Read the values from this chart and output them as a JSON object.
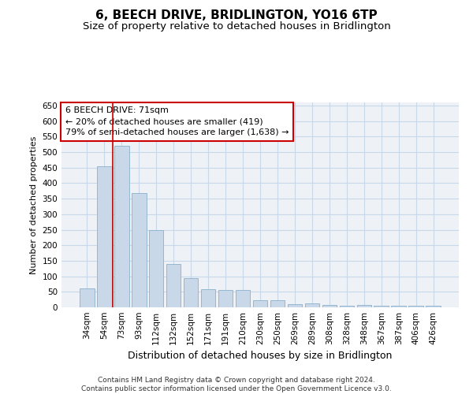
{
  "title": "6, BEECH DRIVE, BRIDLINGTON, YO16 6TP",
  "subtitle": "Size of property relative to detached houses in Bridlington",
  "xlabel": "Distribution of detached houses by size in Bridlington",
  "ylabel": "Number of detached properties",
  "categories": [
    "34sqm",
    "54sqm",
    "73sqm",
    "93sqm",
    "112sqm",
    "132sqm",
    "152sqm",
    "171sqm",
    "191sqm",
    "210sqm",
    "230sqm",
    "250sqm",
    "269sqm",
    "289sqm",
    "308sqm",
    "328sqm",
    "348sqm",
    "367sqm",
    "387sqm",
    "406sqm",
    "426sqm"
  ],
  "values": [
    62,
    455,
    520,
    368,
    248,
    140,
    93,
    59,
    57,
    55,
    24,
    23,
    10,
    12,
    7,
    6,
    7,
    5,
    5,
    4,
    4
  ],
  "bar_color": "#c8d8e8",
  "bar_edge_color": "#8ab0cc",
  "grid_color": "#c8d8e8",
  "background_color": "#eef2f7",
  "annotation_text": "6 BEECH DRIVE: 71sqm\n← 20% of detached houses are smaller (419)\n79% of semi-detached houses are larger (1,638) →",
  "annotation_box_color": "#ffffff",
  "annotation_box_edge_color": "#cc0000",
  "property_line_color": "#cc0000",
  "ylim": [
    0,
    660
  ],
  "yticks": [
    0,
    50,
    100,
    150,
    200,
    250,
    300,
    350,
    400,
    450,
    500,
    550,
    600,
    650
  ],
  "footer": "Contains HM Land Registry data © Crown copyright and database right 2024.\nContains public sector information licensed under the Open Government Licence v3.0.",
  "title_fontsize": 11,
  "subtitle_fontsize": 9.5,
  "xlabel_fontsize": 9,
  "ylabel_fontsize": 8,
  "tick_fontsize": 7.5,
  "annotation_fontsize": 8,
  "footer_fontsize": 6.5
}
